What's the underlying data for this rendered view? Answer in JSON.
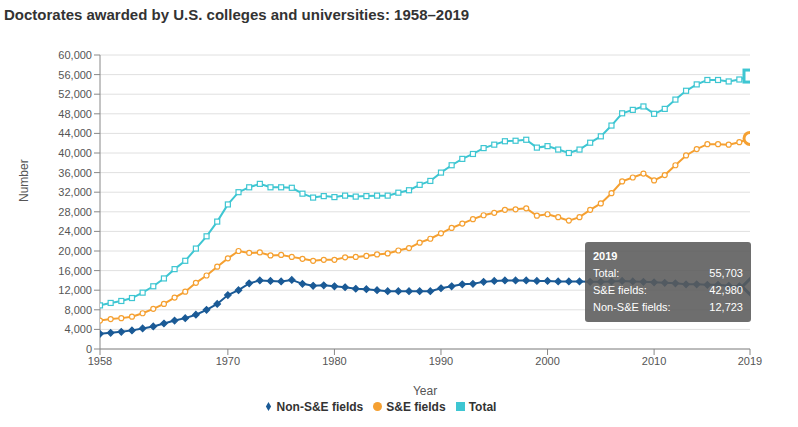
{
  "chart_data": {
    "type": "line",
    "title": "Doctorates awarded by U.S. colleges and universities: 1958–2019",
    "x_label": "Year",
    "y_label": "Number",
    "x": [
      1958,
      1959,
      1960,
      1961,
      1962,
      1963,
      1964,
      1965,
      1966,
      1967,
      1968,
      1969,
      1970,
      1971,
      1972,
      1973,
      1974,
      1975,
      1976,
      1977,
      1978,
      1979,
      1980,
      1981,
      1982,
      1983,
      1984,
      1985,
      1986,
      1987,
      1988,
      1989,
      1990,
      1991,
      1992,
      1993,
      1994,
      1995,
      1996,
      1997,
      1998,
      1999,
      2000,
      2001,
      2002,
      2003,
      2004,
      2005,
      2006,
      2007,
      2008,
      2009,
      2010,
      2011,
      2012,
      2013,
      2014,
      2015,
      2016,
      2017,
      2018,
      2019
    ],
    "series": [
      {
        "name": "S&E fields",
        "color": "#f5a031",
        "marker": "circle",
        "values": [
          5800,
          6100,
          6300,
          6600,
          7300,
          8200,
          9200,
          10500,
          11700,
          13500,
          15000,
          16800,
          18500,
          20000,
          19600,
          19700,
          19100,
          19200,
          18800,
          18400,
          18000,
          18200,
          18200,
          18700,
          18800,
          19000,
          19300,
          19500,
          20100,
          20600,
          21700,
          22500,
          23600,
          24700,
          25600,
          26500,
          27300,
          27800,
          28400,
          28500,
          28700,
          27200,
          27500,
          26900,
          26200,
          26900,
          28400,
          29700,
          31800,
          34200,
          35000,
          35800,
          34400,
          35500,
          37500,
          39500,
          40800,
          41800,
          41800,
          41700,
          42200,
          42980
        ]
      },
      {
        "name": "Non-S&E fields",
        "color": "#1a5a96",
        "marker": "diamond",
        "values": [
          3100,
          3300,
          3500,
          3800,
          4200,
          4600,
          5200,
          5800,
          6300,
          7000,
          8000,
          9200,
          11000,
          12000,
          13400,
          14000,
          13900,
          13800,
          14100,
          13300,
          12900,
          13000,
          12800,
          12600,
          12300,
          12200,
          12000,
          11800,
          11800,
          11800,
          11800,
          11800,
          12400,
          12800,
          13200,
          13300,
          13700,
          13900,
          14000,
          14000,
          14000,
          13900,
          13900,
          13800,
          13800,
          13800,
          13700,
          13700,
          13800,
          13900,
          13800,
          13700,
          13600,
          13500,
          13400,
          13200,
          13200,
          13100,
          13100,
          12900,
          12800,
          12723
        ]
      },
      {
        "name": "Total",
        "color": "#3ec6d2",
        "marker": "square",
        "values": [
          8900,
          9400,
          9800,
          10400,
          11500,
          12800,
          14400,
          16300,
          18000,
          20500,
          23000,
          26000,
          29500,
          32000,
          33000,
          33700,
          33000,
          33000,
          32900,
          31700,
          30900,
          31200,
          31000,
          31300,
          31100,
          31200,
          31300,
          31300,
          31900,
          32400,
          33500,
          34300,
          36000,
          37500,
          38800,
          39800,
          41000,
          41700,
          42400,
          42500,
          42700,
          41100,
          41400,
          40700,
          40000,
          40700,
          42100,
          43400,
          45600,
          48100,
          48800,
          49500,
          48000,
          49000,
          50900,
          52700,
          54000,
          54900,
          54900,
          54600,
          55000,
          55703
        ]
      }
    ],
    "xlim": [
      1958,
      2019
    ],
    "xticks": [
      1958,
      1970,
      1980,
      1990,
      2000,
      2010,
      2019
    ],
    "ylim": [
      0,
      60000
    ],
    "yticks": [
      0,
      {
        "value": 4000,
        "label": "4,000"
      },
      {
        "value": 8000,
        "label": "8,000"
      },
      {
        "value": 12000,
        "label": "12,000"
      },
      {
        "value": 16000,
        "label": "16,000"
      },
      {
        "value": 20000,
        "label": "20,000"
      },
      {
        "value": 24000,
        "label": "24,000"
      },
      {
        "value": 28000,
        "label": "28,000"
      },
      {
        "value": 32000,
        "label": "32,000"
      },
      {
        "value": 36000,
        "label": "36,000"
      },
      {
        "value": 40000,
        "label": "40,000"
      },
      {
        "value": 44000,
        "label": "44,000"
      },
      {
        "value": 48000,
        "label": "48,000"
      },
      {
        "value": 52000,
        "label": "52,000"
      },
      {
        "value": 56000,
        "label": "56,000"
      },
      {
        "value": 60000,
        "label": "60,000"
      }
    ],
    "grid": true,
    "legend": "bottom",
    "annotation": {
      "title": "2019",
      "rows": [
        {
          "label": "Total:",
          "value": "55,703"
        },
        {
          "label": "S&E fields:",
          "value": "42,980"
        },
        {
          "label": "Non-S&E fields:",
          "value": "12,723"
        }
      ]
    }
  }
}
